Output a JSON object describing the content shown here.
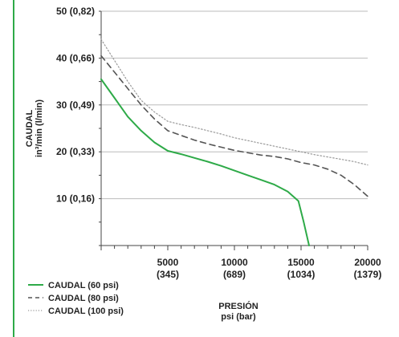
{
  "chart_data": {
    "type": "line",
    "xlabel": "PRESIÓN",
    "xlabel_unit": "psi (bar)",
    "ylabel": "CAUDAL",
    "ylabel_unit": "in³/min (l/min)",
    "xlim": [
      0,
      20000
    ],
    "ylim": [
      0,
      50
    ],
    "x_ticks": [
      {
        "value": 5000,
        "line1": "5000",
        "line2": "(345)"
      },
      {
        "value": 10000,
        "line1": "10000",
        "line2": "(689)"
      },
      {
        "value": 15000,
        "line1": "15000",
        "line2": "(1034)"
      },
      {
        "value": 20000,
        "line1": "20000",
        "line2": "(1379)"
      }
    ],
    "y_ticks": [
      {
        "value": 10,
        "label": "10 (0,16)"
      },
      {
        "value": 20,
        "label": "20 (0,33)"
      },
      {
        "value": 30,
        "label": "30 (0,49)"
      },
      {
        "value": 40,
        "label": "40 (0,66)"
      },
      {
        "value": 50,
        "label": "50 (0,82)"
      }
    ],
    "grid": "horizontal",
    "legend_position": "bottom-left",
    "series": [
      {
        "name": "CAUDAL (60 psi)",
        "style": "solid",
        "color": "#2eaa48",
        "points": [
          [
            0,
            35.5
          ],
          [
            1000,
            31.5
          ],
          [
            2000,
            27.5
          ],
          [
            3000,
            24.5
          ],
          [
            4000,
            22
          ],
          [
            5000,
            20.2
          ],
          [
            6000,
            19.5
          ],
          [
            7000,
            18.7
          ],
          [
            8000,
            17.9
          ],
          [
            9000,
            17
          ],
          [
            10000,
            16
          ],
          [
            11000,
            15
          ],
          [
            12000,
            14
          ],
          [
            13000,
            13
          ],
          [
            14000,
            11.5
          ],
          [
            14800,
            9.5
          ],
          [
            15200,
            5
          ],
          [
            15600,
            0
          ]
        ]
      },
      {
        "name": "CAUDAL (80 psi)",
        "style": "dashed",
        "color": "#555555",
        "points": [
          [
            0,
            40.5
          ],
          [
            1000,
            37
          ],
          [
            2000,
            33.5
          ],
          [
            3000,
            30
          ],
          [
            4000,
            27
          ],
          [
            5000,
            24.5
          ],
          [
            6000,
            23.5
          ],
          [
            7000,
            22.5
          ],
          [
            8000,
            21.7
          ],
          [
            9000,
            21
          ],
          [
            10000,
            20.3
          ],
          [
            11000,
            19.8
          ],
          [
            12000,
            19.3
          ],
          [
            13000,
            19
          ],
          [
            14000,
            18.5
          ],
          [
            15000,
            17.7
          ],
          [
            16000,
            17.2
          ],
          [
            17000,
            16.3
          ],
          [
            18000,
            15
          ],
          [
            19000,
            13
          ],
          [
            20000,
            10.5
          ]
        ]
      },
      {
        "name": "CAUDAL (100 psi)",
        "style": "dotted",
        "color": "#999999",
        "points": [
          [
            0,
            44
          ],
          [
            1000,
            39.5
          ],
          [
            2000,
            35
          ],
          [
            3000,
            31
          ],
          [
            4000,
            28.5
          ],
          [
            5000,
            26.5
          ],
          [
            6000,
            25.8
          ],
          [
            7000,
            25.2
          ],
          [
            8000,
            24.5
          ],
          [
            9000,
            23.8
          ],
          [
            10000,
            23
          ],
          [
            11000,
            22.4
          ],
          [
            12000,
            21.8
          ],
          [
            13000,
            21.2
          ],
          [
            14000,
            20.6
          ],
          [
            15000,
            20
          ],
          [
            16000,
            19.4
          ],
          [
            17000,
            18.9
          ],
          [
            18000,
            18.4
          ],
          [
            19000,
            17.9
          ],
          [
            20000,
            17.2
          ]
        ]
      }
    ]
  },
  "colors": {
    "frame_accent": "#2eaa48",
    "grid": "#bbbbbb",
    "axis": "#444444",
    "text": "#222222"
  }
}
